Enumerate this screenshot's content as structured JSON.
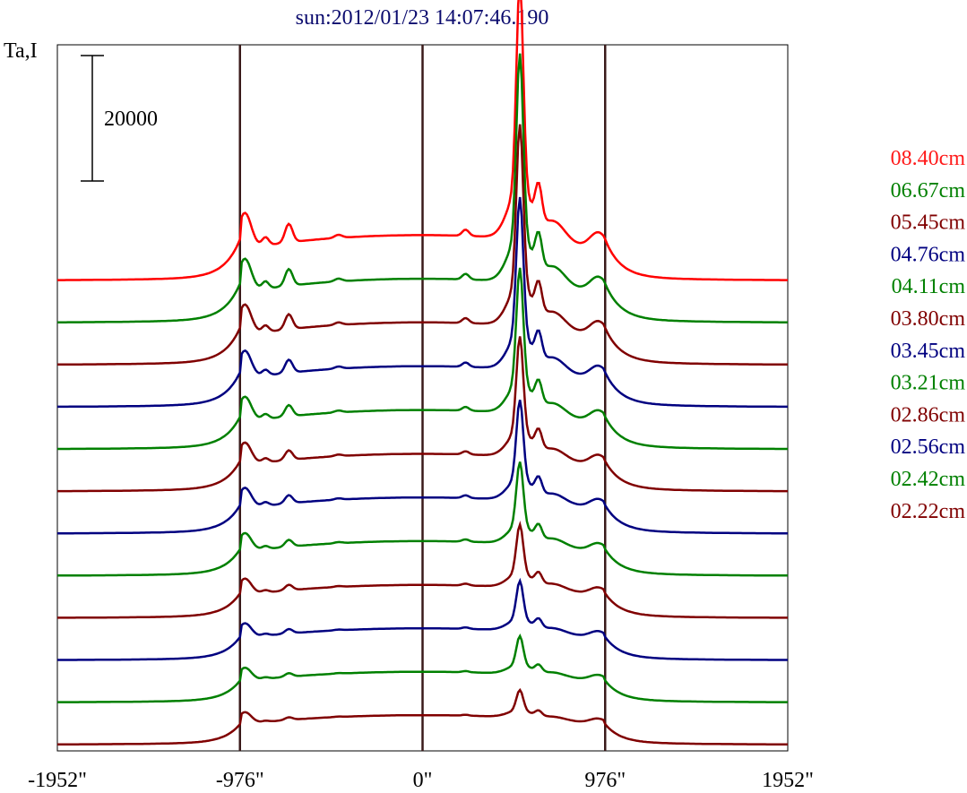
{
  "chart_data": {
    "type": "line",
    "title": "sun:2012/01/23 14:07:46.190",
    "ylabel": "Ta,I",
    "xlabel": "",
    "x_ticks": [
      "-1952\"",
      "-976\"",
      "0\"",
      "976\"",
      "1952\""
    ],
    "x_tick_values": [
      -1952,
      -976,
      0,
      976,
      1952
    ],
    "xlim": [
      -1952,
      1952
    ],
    "reference_lines_x": [
      -976,
      0,
      976
    ],
    "scale_bar": {
      "label": "20000",
      "value": 20000
    },
    "legend_placement": "right",
    "grid": false,
    "stacked_offset": true,
    "series": [
      {
        "name": "08.40cm",
        "color": "#ff0000",
        "peak": 1.0
      },
      {
        "name": "06.67cm",
        "color": "#008000",
        "peak": 0.93
      },
      {
        "name": "05.45cm",
        "color": "#800000",
        "peak": 0.86
      },
      {
        "name": "04.76cm",
        "color": "#000080",
        "peak": 0.78
      },
      {
        "name": "04.11cm",
        "color": "#008000",
        "peak": 0.7
      },
      {
        "name": "03.80cm",
        "color": "#800000",
        "peak": 0.62
      },
      {
        "name": "03.45cm",
        "color": "#000080",
        "peak": 0.55
      },
      {
        "name": "03.21cm",
        "color": "#008000",
        "peak": 0.48
      },
      {
        "name": "02.86cm",
        "color": "#800000",
        "peak": 0.4
      },
      {
        "name": "02.56cm",
        "color": "#000080",
        "peak": 0.34
      },
      {
        "name": "02.42cm",
        "color": "#008000",
        "peak": 0.28
      },
      {
        "name": "02.22cm",
        "color": "#800000",
        "peak": 0.22
      }
    ]
  }
}
